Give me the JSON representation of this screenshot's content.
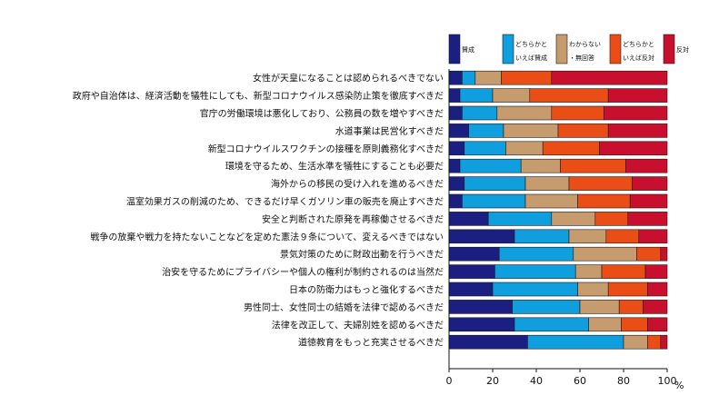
{
  "chart_data": {
    "type": "bar",
    "orientation": "horizontal",
    "stacked": true,
    "title": "",
    "xlabel": "",
    "ylabel": "",
    "xlim": [
      0,
      100
    ],
    "x_unit": "%",
    "xticks": [
      "0",
      "20",
      "40",
      "60",
      "80",
      "100"
    ],
    "grid": false,
    "legend_position": "top-right",
    "categories": [
      "女性が天皇になることは認められるべきでない",
      "政府や自治体は、経済活動を犠牲にしても、新型コロナウイルス感染防止策を徹底すべきだ",
      "官庁の労働環境は悪化しており、公務員の数を増やすべきだ",
      "水道事業は民営化すべきだ",
      "新型コロナウイルスワクチンの接種を原則義務化すべきだ",
      "環境を守るため、生活水準を犠牲にすることも必要だ",
      "海外からの移民の受け入れを進めるべきだ",
      "温室効果ガスの削減のため、できるだけ早くガソリン車の販売を廃止すべきだ",
      "安全と判断された原発を再稼働させるべきだ",
      "戦争の放棄や戦力を持たないことなどを定めた憲法９条について、変えるべきではない",
      "景気対策のために財政出動を行うべきだ",
      "治安を守るためにプライバシーや個人の権利が制約されるのは当然だ",
      "日本の防衛力はもっと強化するべきだ",
      "男性同士、女性同士の結婚を法律で認めるべきだ",
      "法律を改正して、夫婦別姓を認めるべきだ",
      "道徳教育をもっと充実させるべきだ"
    ],
    "series": [
      {
        "name": "賛成",
        "legend_lines": [
          "賛成"
        ],
        "color": "#1c1f82",
        "values": [
          6,
          5,
          6,
          9,
          7,
          5,
          7,
          6,
          18,
          30,
          23,
          21,
          20,
          29,
          30,
          36
        ]
      },
      {
        "name": "どちらかといえば賛成",
        "legend_lines": [
          "どちらかと",
          "いえば賛成"
        ],
        "color": "#0f9fde",
        "values": [
          6,
          15,
          16,
          16,
          19,
          28,
          28,
          29,
          29,
          25,
          34,
          37,
          39,
          31,
          34,
          44
        ]
      },
      {
        "name": "わからない・無回答",
        "legend_lines": [
          "わからない",
          "・無回答"
        ],
        "color": "#c69b6d",
        "values": [
          12,
          17,
          25,
          25,
          17,
          18,
          20,
          24,
          20,
          17,
          29,
          12,
          14,
          18,
          15,
          11
        ]
      },
      {
        "name": "どちらかといえば反対",
        "legend_lines": [
          "どちらかと",
          "いえば反対"
        ],
        "color": "#ea4d16",
        "values": [
          23,
          36,
          24,
          23,
          26,
          30,
          29,
          24,
          15,
          15,
          11,
          20,
          18,
          11,
          12,
          6
        ]
      },
      {
        "name": "反対",
        "legend_lines": [
          "反対"
        ],
        "color": "#c8102e",
        "values": [
          53,
          27,
          29,
          27,
          31,
          19,
          16,
          17,
          18,
          13,
          3,
          10,
          9,
          11,
          9,
          3
        ]
      }
    ]
  }
}
